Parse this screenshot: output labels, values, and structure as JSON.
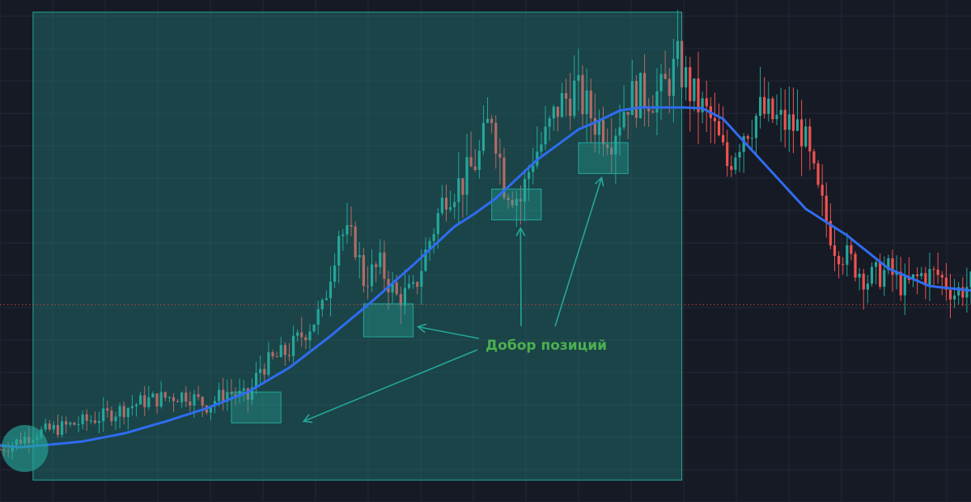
{
  "chart_data": {
    "type": "candlestick",
    "title": "",
    "xlabel": "",
    "ylabel": "",
    "ylim": [
      0,
      100
    ],
    "grid": true,
    "annotation": {
      "text": "Добор позиций",
      "color": "#4caf50"
    },
    "colors": {
      "up": "#26a69a",
      "down": "#ef5350",
      "ma": "#2f6cf0",
      "zone": "#26a69a",
      "background": "#161a25"
    },
    "moving_average": [
      {
        "x": 0,
        "y": 6.4
      },
      {
        "x": 5,
        "y": 6.0
      },
      {
        "x": 10,
        "y": 6.4
      },
      {
        "x": 20,
        "y": 7.3
      },
      {
        "x": 30,
        "y": 9.1
      },
      {
        "x": 40,
        "y": 11.8
      },
      {
        "x": 50,
        "y": 14.8
      },
      {
        "x": 60,
        "y": 18.5
      },
      {
        "x": 70,
        "y": 24.0
      },
      {
        "x": 80,
        "y": 31.2
      },
      {
        "x": 90,
        "y": 39.0
      },
      {
        "x": 100,
        "y": 47.3
      },
      {
        "x": 110,
        "y": 56.0
      },
      {
        "x": 115,
        "y": 59.0
      },
      {
        "x": 120,
        "y": 62.4
      },
      {
        "x": 130,
        "y": 71.1
      },
      {
        "x": 140,
        "y": 78.0
      },
      {
        "x": 145,
        "y": 80.0
      },
      {
        "x": 150,
        "y": 82.3
      },
      {
        "x": 155,
        "y": 83.0
      },
      {
        "x": 165,
        "y": 83.0
      },
      {
        "x": 170,
        "y": 82.8
      },
      {
        "x": 175,
        "y": 80.4
      },
      {
        "x": 185,
        "y": 70.2
      },
      {
        "x": 195,
        "y": 60.0
      },
      {
        "x": 205,
        "y": 54.0
      },
      {
        "x": 215,
        "y": 46.5
      },
      {
        "x": 225,
        "y": 42.5
      },
      {
        "x": 235,
        "y": 41.5
      }
    ],
    "price_path": [
      {
        "x": 0,
        "y": 5.5
      },
      {
        "x": 8,
        "y": 9
      },
      {
        "x": 15,
        "y": 10.5
      },
      {
        "x": 25,
        "y": 13
      },
      {
        "x": 35,
        "y": 16.5
      },
      {
        "x": 45,
        "y": 18
      },
      {
        "x": 50,
        "y": 15.5
      },
      {
        "x": 55,
        "y": 18.5
      },
      {
        "x": 60,
        "y": 17
      },
      {
        "x": 63,
        "y": 24
      },
      {
        "x": 70,
        "y": 28
      },
      {
        "x": 78,
        "y": 37
      },
      {
        "x": 82,
        "y": 55
      },
      {
        "x": 86,
        "y": 52
      },
      {
        "x": 88,
        "y": 44
      },
      {
        "x": 92,
        "y": 47
      },
      {
        "x": 96,
        "y": 40
      },
      {
        "x": 100,
        "y": 41
      },
      {
        "x": 104,
        "y": 53
      },
      {
        "x": 108,
        "y": 64
      },
      {
        "x": 112,
        "y": 66
      },
      {
        "x": 116,
        "y": 72
      },
      {
        "x": 119,
        "y": 82
      },
      {
        "x": 122,
        "y": 66
      },
      {
        "x": 126,
        "y": 62
      },
      {
        "x": 129,
        "y": 72
      },
      {
        "x": 132,
        "y": 76
      },
      {
        "x": 135,
        "y": 83
      },
      {
        "x": 139,
        "y": 87
      },
      {
        "x": 144,
        "y": 80
      },
      {
        "x": 148,
        "y": 77
      },
      {
        "x": 152,
        "y": 85
      },
      {
        "x": 156,
        "y": 86
      },
      {
        "x": 160,
        "y": 86
      },
      {
        "x": 164,
        "y": 93
      },
      {
        "x": 168,
        "y": 85
      },
      {
        "x": 172,
        "y": 80
      },
      {
        "x": 176,
        "y": 70
      },
      {
        "x": 180,
        "y": 78
      },
      {
        "x": 184,
        "y": 82
      },
      {
        "x": 188,
        "y": 80
      },
      {
        "x": 194,
        "y": 78
      },
      {
        "x": 198,
        "y": 63
      },
      {
        "x": 202,
        "y": 52
      },
      {
        "x": 206,
        "y": 48
      },
      {
        "x": 210,
        "y": 44
      },
      {
        "x": 215,
        "y": 46
      },
      {
        "x": 219,
        "y": 42
      },
      {
        "x": 223,
        "y": 45
      },
      {
        "x": 227,
        "y": 45
      },
      {
        "x": 231,
        "y": 41
      },
      {
        "x": 235,
        "y": 43
      }
    ],
    "entry_zones": [
      {
        "x_from": 56,
        "x_to": 68,
        "y_from": 11.5,
        "y_to": 18.5
      },
      {
        "x_from": 88,
        "x_to": 100,
        "y_from": 31,
        "y_to": 38.5
      },
      {
        "x_from": 119,
        "x_to": 131,
        "y_from": 57.5,
        "y_to": 64.5
      },
      {
        "x_from": 140,
        "x_to": 152,
        "y_from": 68,
        "y_to": 75
      }
    ],
    "highlight_range": {
      "x_from": 8,
      "x_to": 165
    },
    "reference_level": 38.3,
    "start_marker": {
      "x": 6,
      "y": 5.7
    }
  }
}
